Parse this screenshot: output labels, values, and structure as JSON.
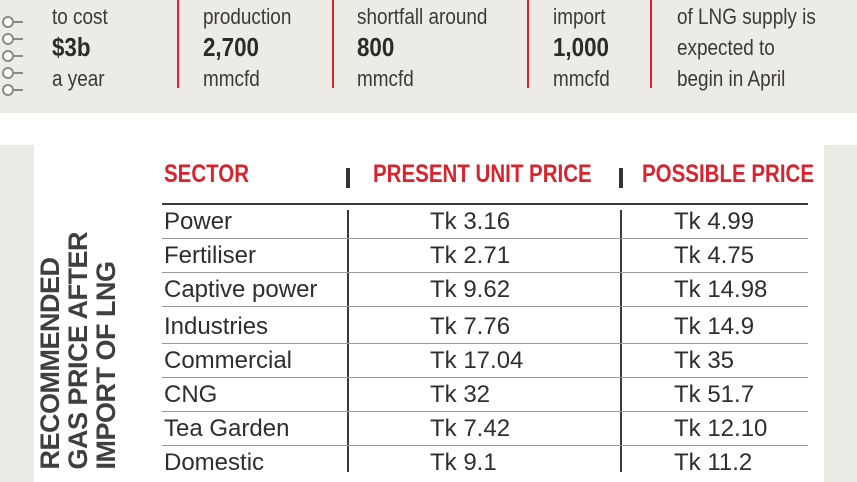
{
  "stats": [
    {
      "line1": "to cost",
      "big": "$3b",
      "line3": "a year"
    },
    {
      "line1": "production",
      "big": "2,700",
      "line3": "mmcfd"
    },
    {
      "line1": "shortfall around",
      "big": "800",
      "line3": "mmcfd"
    },
    {
      "line1": "import",
      "big": "1,000",
      "line3": "mmcfd"
    },
    {
      "line1": "of LNG supply is",
      "line2": "expected to",
      "line3": "begin in April"
    }
  ],
  "table": {
    "side_title": "RECOMMENDED GAS PRICE AFTER IMPORT OF LNG",
    "side_title_lines": [
      "RECOMMENDED",
      "GAS PRICE AFTER",
      "IMPORT OF LNG"
    ],
    "headers": [
      "SECTOR",
      "PRESENT UNIT PRICE",
      "POSSIBLE PRICE"
    ],
    "rows": [
      {
        "sector": "Power",
        "present": "Tk 3.16",
        "possible": "Tk 4.99"
      },
      {
        "sector": "Fertiliser",
        "present": "Tk 2.71",
        "possible": "Tk 4.75"
      },
      {
        "sector": "Captive power",
        "present": "Tk 9.62",
        "possible": "Tk 14.98"
      },
      {
        "sector": "Industries",
        "present": "Tk 7.76",
        "possible": "Tk 14.9"
      },
      {
        "sector": "Commercial",
        "present": "Tk 17.04",
        "possible": "Tk 35"
      },
      {
        "sector": "CNG",
        "present": "Tk 32",
        "possible": "Tk 51.7"
      },
      {
        "sector": "Tea Garden",
        "present": "Tk 7.42",
        "possible": "Tk 12.10"
      },
      {
        "sector": "Domestic",
        "present": "Tk 9.1",
        "possible": "Tk 11.2"
      }
    ]
  },
  "colors": {
    "accent": "#d9232d",
    "band": "#ecebe5",
    "text": "#2e2e2e"
  }
}
